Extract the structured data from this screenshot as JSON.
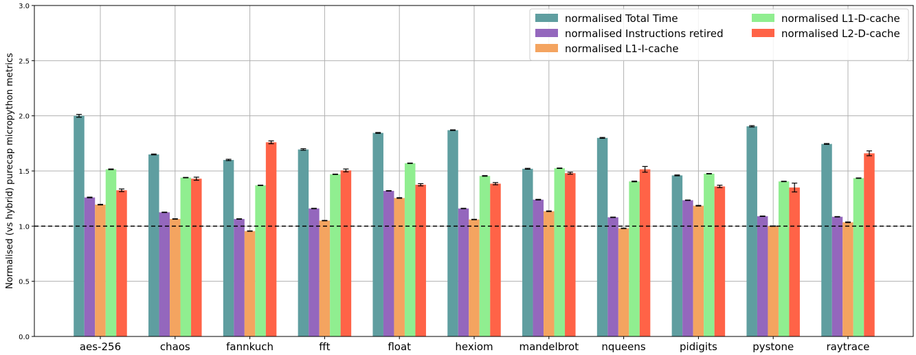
{
  "chart_data": {
    "type": "bar",
    "title": "",
    "xlabel": "",
    "ylabel": "Normalised (vs hybrid) purecap micropython metrics",
    "ylim": [
      0,
      3.0
    ],
    "yticks": [
      "0.0",
      "0.5",
      "1.0",
      "1.5",
      "2.0",
      "2.5",
      "3.0"
    ],
    "grid": true,
    "reference_line": 1.0,
    "legend_position": "top-right",
    "categories": [
      "aes-256",
      "chaos",
      "fannkuch",
      "fft",
      "float",
      "hexiom",
      "mandelbrot",
      "nqueens",
      "pidigits",
      "pystone",
      "raytrace"
    ],
    "series": [
      {
        "name": "normalised Total Time",
        "color": "#5f9ea0",
        "values": [
          2.0,
          1.65,
          1.6,
          1.695,
          1.845,
          1.87,
          1.52,
          1.8,
          1.46,
          1.905,
          1.745
        ],
        "errors": [
          0.013,
          0.004,
          0.006,
          0.007,
          0.004,
          0.003,
          0.004,
          0.004,
          0.004,
          0.006,
          0.004
        ]
      },
      {
        "name": "normalised Instructions retired",
        "color": "#9467bd",
        "values": [
          1.26,
          1.125,
          1.065,
          1.16,
          1.32,
          1.16,
          1.24,
          1.08,
          1.235,
          1.09,
          1.085
        ],
        "errors": [
          0.003,
          0.002,
          0.002,
          0.002,
          0.002,
          0.002,
          0.003,
          0.002,
          0.002,
          0.002,
          0.002
        ]
      },
      {
        "name": "normalised L1-I-cache",
        "color": "#f4a460",
        "values": [
          1.195,
          1.065,
          0.955,
          1.05,
          1.255,
          1.06,
          1.135,
          0.98,
          1.185,
          1.0,
          1.035
        ],
        "errors": [
          0.003,
          0.002,
          0.002,
          0.002,
          0.003,
          0.002,
          0.003,
          0.002,
          0.003,
          0.002,
          0.003
        ]
      },
      {
        "name": "normalised L1-D-cache",
        "color": "#90ee90",
        "values": [
          1.515,
          1.44,
          1.37,
          1.47,
          1.57,
          1.455,
          1.525,
          1.405,
          1.475,
          1.405,
          1.435
        ],
        "errors": [
          0.003,
          0.002,
          0.002,
          0.002,
          0.002,
          0.003,
          0.002,
          0.003,
          0.002,
          0.002,
          0.002
        ]
      },
      {
        "name": "normalised L2-D-cache",
        "color": "#ff6347",
        "values": [
          1.325,
          1.43,
          1.76,
          1.505,
          1.375,
          1.385,
          1.48,
          1.515,
          1.36,
          1.35,
          1.66
        ],
        "errors": [
          0.012,
          0.014,
          0.013,
          0.013,
          0.01,
          0.01,
          0.009,
          0.026,
          0.011,
          0.04,
          0.022
        ]
      }
    ]
  }
}
